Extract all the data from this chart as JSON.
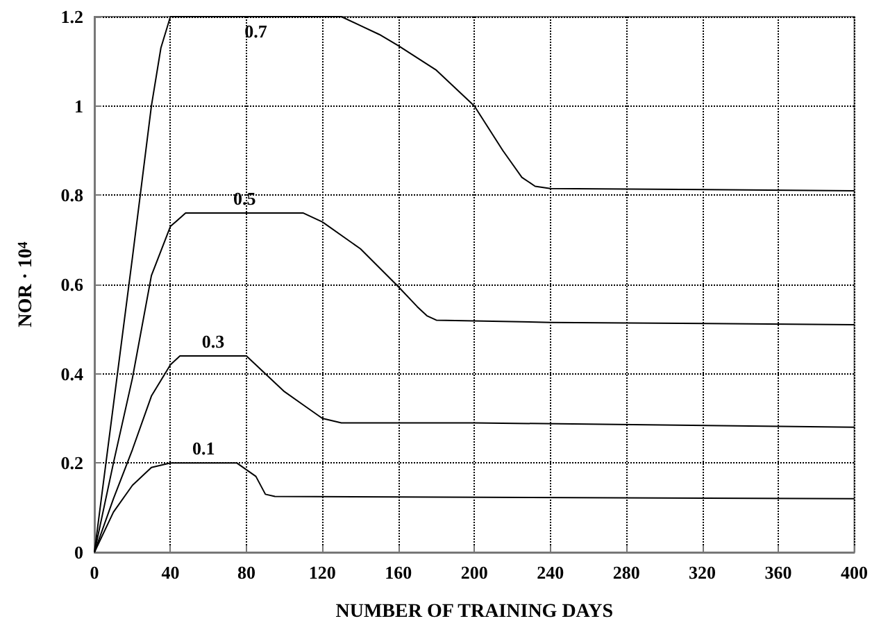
{
  "chart_data": {
    "type": "line",
    "xlabel": "NUMBER OF TRAINING DAYS",
    "ylabel": "NOR · 10$^{4}$",
    "xlim": [
      0,
      400
    ],
    "xticks": [
      0,
      40,
      80,
      120,
      160,
      200,
      240,
      280,
      320,
      360,
      400
    ],
    "ylim": [
      0,
      1.2
    ],
    "yticks": [
      0,
      0.2,
      0.4,
      0.6,
      0.8,
      1,
      1.2
    ],
    "grid": true,
    "line_style": "solid",
    "marker": "none",
    "series": [
      {
        "name": "0.7",
        "color": "#000000",
        "x": [
          0,
          10,
          20,
          30,
          35,
          40,
          130,
          140,
          150,
          160,
          180,
          200,
          215,
          225,
          232,
          240,
          400
        ],
        "values": [
          0,
          0.33,
          0.66,
          1.0,
          1.13,
          1.2,
          1.2,
          1.18,
          1.16,
          1.135,
          1.08,
          1.0,
          0.9,
          0.84,
          0.82,
          0.815,
          0.81
        ]
      },
      {
        "name": "0.5",
        "color": "#000000",
        "x": [
          0,
          10,
          20,
          30,
          40,
          48,
          110,
          120,
          140,
          160,
          170,
          175,
          180,
          240,
          400
        ],
        "values": [
          0,
          0.2,
          0.39,
          0.62,
          0.73,
          0.76,
          0.76,
          0.74,
          0.68,
          0.595,
          0.55,
          0.53,
          0.52,
          0.515,
          0.51
        ]
      },
      {
        "name": "0.3",
        "color": "#000000",
        "x": [
          0,
          10,
          20,
          30,
          40,
          45,
          80,
          100,
          110,
          120,
          130,
          200,
          400
        ],
        "values": [
          0,
          0.12,
          0.23,
          0.35,
          0.42,
          0.44,
          0.44,
          0.36,
          0.33,
          0.3,
          0.29,
          0.29,
          0.28
        ]
      },
      {
        "name": "0.1",
        "color": "#000000",
        "x": [
          0,
          10,
          20,
          30,
          40,
          75,
          85,
          90,
          95,
          400
        ],
        "values": [
          0,
          0.09,
          0.15,
          0.19,
          0.2,
          0.2,
          0.17,
          0.13,
          0.125,
          0.12
        ]
      }
    ]
  }
}
